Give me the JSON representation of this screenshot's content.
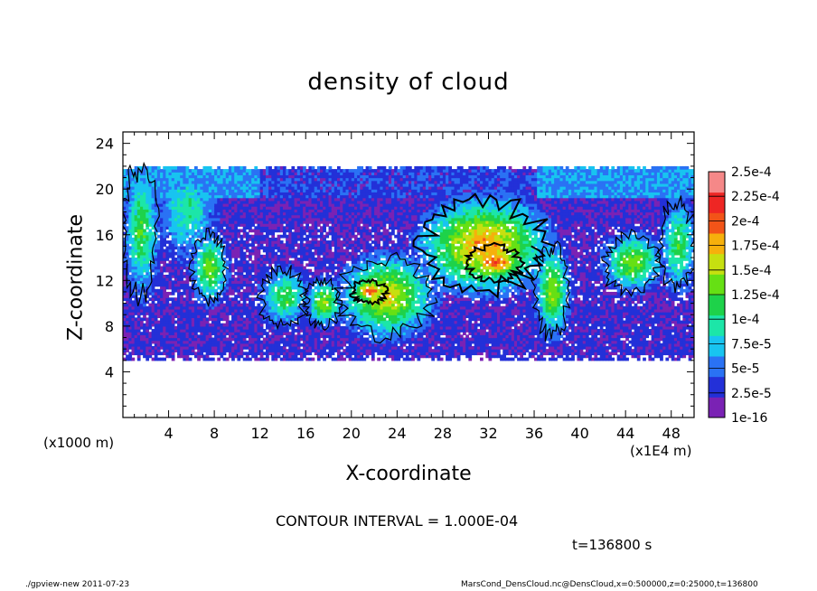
{
  "chart_data": {
    "type": "heatmap",
    "title": "density of cloud",
    "xlabel": "X-coordinate",
    "ylabel": "Z-coordinate",
    "x_unit_note": "(x1E4 m)",
    "z_unit_note": "(x1000 m)",
    "xlim": [
      0,
      50
    ],
    "ylim": [
      0,
      25
    ],
    "x_ticks": [
      4,
      8,
      12,
      16,
      20,
      24,
      28,
      32,
      36,
      40,
      44,
      48
    ],
    "y_ticks": [
      4,
      8,
      12,
      16,
      20,
      24
    ],
    "colorbar": {
      "labels": [
        "1e-16",
        "2.5e-5",
        "5e-5",
        "7.5e-5",
        "1e-4",
        "1.25e-4",
        "1.5e-4",
        "1.75e-4",
        "2e-4",
        "2.25e-4",
        "2.5e-4"
      ],
      "colors": [
        "#7a22b4",
        "#2330d8",
        "#2a72f4",
        "#18c4f0",
        "#1ce6a8",
        "#1ed24a",
        "#66e014",
        "#c6e010",
        "#f6b00c",
        "#f25418",
        "#ee2624",
        "#f58888"
      ]
    },
    "contour_interval": "CONTOUR INTERVAL = 1.000E-04",
    "time": "t=136800 s",
    "cloud_layer_z": [
      5,
      22
    ],
    "regions": [
      {
        "x": [
          0,
          3
        ],
        "z": [
          10.5,
          22
        ],
        "level": 5
      },
      {
        "x": [
          3,
          8
        ],
        "z": [
          14,
          22
        ],
        "level": 4
      },
      {
        "x": [
          6,
          9
        ],
        "z": [
          10,
          16
        ],
        "level": 6
      },
      {
        "x": [
          12,
          16
        ],
        "z": [
          8,
          13
        ],
        "level": 5
      },
      {
        "x": [
          16,
          19
        ],
        "z": [
          8,
          12
        ],
        "level": 6
      },
      {
        "x": [
          19,
          27
        ],
        "z": [
          7,
          14
        ],
        "level": 7
      },
      {
        "x": [
          20,
          23
        ],
        "z": [
          10,
          12
        ],
        "level": 9
      },
      {
        "x": [
          26,
          37
        ],
        "z": [
          11,
          19
        ],
        "level": 8
      },
      {
        "x": [
          30,
          35
        ],
        "z": [
          12,
          15
        ],
        "level": 9
      },
      {
        "x": [
          36,
          39
        ],
        "z": [
          7,
          15
        ],
        "level": 6
      },
      {
        "x": [
          42,
          47
        ],
        "z": [
          11,
          16
        ],
        "level": 6
      },
      {
        "x": [
          47,
          50
        ],
        "z": [
          11,
          19
        ],
        "level": 5
      }
    ]
  },
  "footer": {
    "left": "./gpview-new   2011-07-23",
    "right": "MarsCond_DensCloud.nc@DensCloud,x=0:500000,z=0:25000,t=136800"
  }
}
